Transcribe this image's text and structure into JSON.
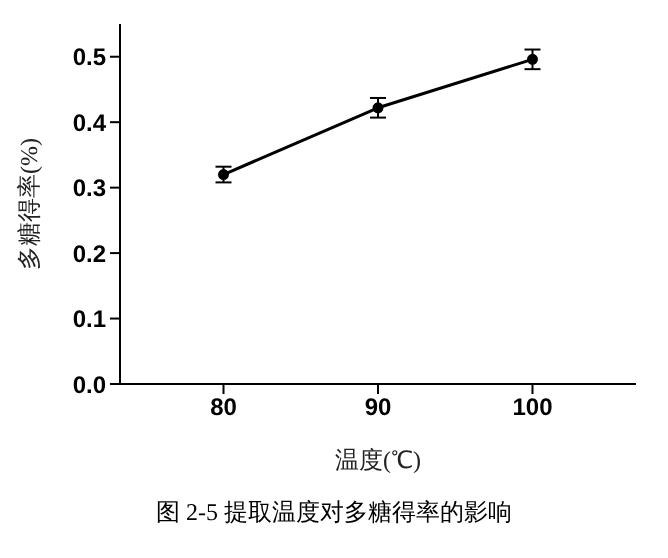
{
  "chart_data": {
    "type": "line",
    "xlabel": "温度(℃)",
    "ylabel": "多糖得率(%)",
    "annotations": [
      "图 2-5  提取温度对多糖得率的影响"
    ],
    "x": [
      80,
      90,
      100
    ],
    "series": [
      {
        "color": "#000000",
        "values": [
          0.32,
          0.422,
          0.496
        ],
        "errors": [
          0.012,
          0.015,
          0.015
        ]
      }
    ],
    "xlim": [
      73.3,
      106.7
    ],
    "xticks": [
      80,
      90,
      100
    ],
    "ylim": [
      0,
      0.55
    ],
    "yticks": [
      {
        "value": 0,
        "label": "0.0"
      },
      0.1,
      0.2,
      0.3,
      0.4,
      0.5
    ],
    "marker": "circle",
    "line_style": "solid",
    "grid": false,
    "legend": false
  }
}
